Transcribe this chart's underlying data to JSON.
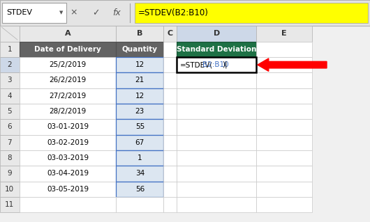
{
  "formula_bar_name": "STDEV",
  "formula_bar_formula": "=STDEV(B2:B10)",
  "col_A_header": "Date of Delivery",
  "col_B_header": "Quantity",
  "col_D_header": "Standard Deviation",
  "dates": [
    "25/2/2019",
    "26/2/2019",
    "27/2/2019",
    "28/2/2019",
    "03-01-2019",
    "03-02-2019",
    "03-03-2019",
    "03-04-2019",
    "03-05-2019"
  ],
  "quantities": [
    "12",
    "21",
    "12",
    "23",
    "55",
    "67",
    "1",
    "34",
    "56"
  ],
  "bg_color": "#f0f0f0",
  "header_bg": "#636363",
  "header_text": "#ffffff",
  "green_header": "#1e7145",
  "formula_yellow": "#ffff00",
  "cell_selected_border": "#4472c4",
  "formula_text_black1": "=STDEV(",
  "formula_text_blue": "B2:B10",
  "formula_text_black2": ")"
}
